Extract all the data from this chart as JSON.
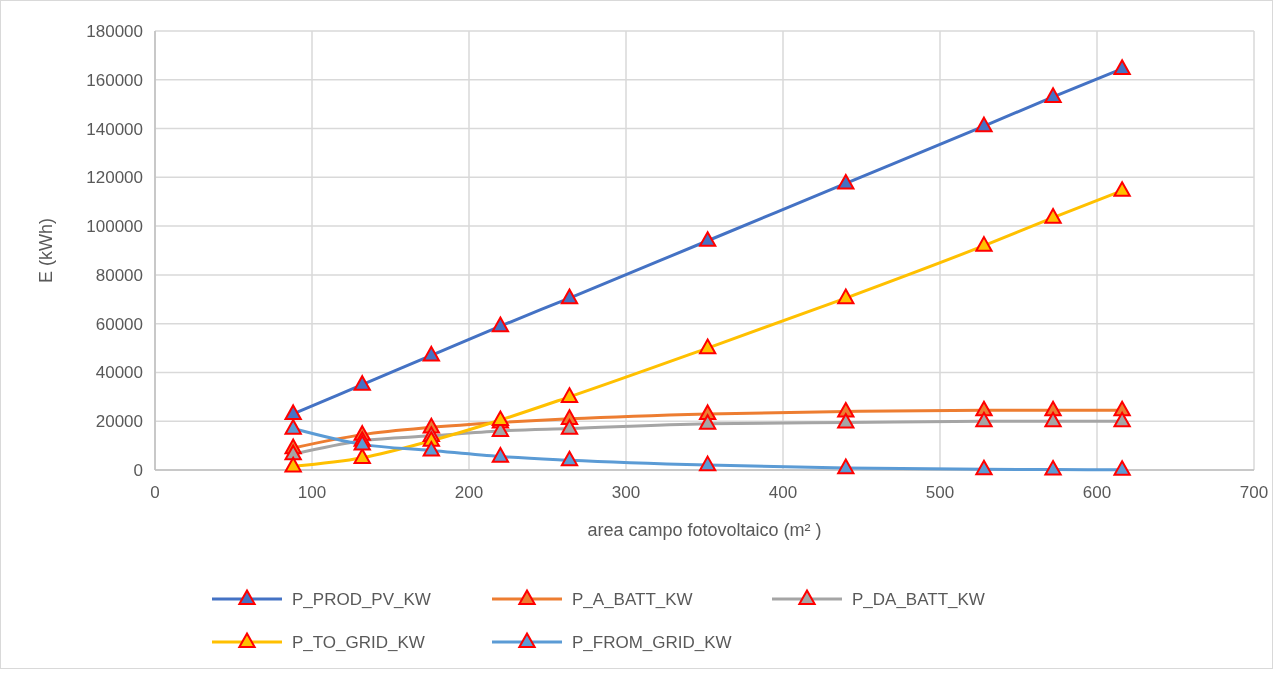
{
  "chart_data": {
    "type": "line",
    "xlabel": "area campo fotovoltaico (m² )",
    "ylabel": "E (kWh)",
    "x": [
      88,
      132,
      176,
      220,
      264,
      352,
      440,
      528,
      572,
      616
    ],
    "xlim": [
      0,
      700
    ],
    "xticks": [
      0,
      100,
      200,
      300,
      400,
      500,
      600,
      700
    ],
    "ylim": [
      0,
      180000
    ],
    "yticks": [
      0,
      20000,
      40000,
      60000,
      80000,
      100000,
      120000,
      140000,
      160000,
      180000
    ],
    "grid": true,
    "legend": "bottom",
    "marker": "triangle",
    "line_style": "solid",
    "series": [
      {
        "name": "P_PROD_PV_KW",
        "color": "#4472c4",
        "values": [
          23000,
          35000,
          47000,
          59000,
          70500,
          94000,
          117500,
          141000,
          153000,
          164500
        ]
      },
      {
        "name": "P_A_BATT_KW",
        "color": "#ed7d31",
        "values": [
          9000,
          14500,
          17500,
          19500,
          21000,
          23000,
          24000,
          24500,
          24500,
          24500
        ]
      },
      {
        "name": "P_DA_BATT_KW",
        "color": "#a5a5a5",
        "values": [
          6500,
          12000,
          14000,
          16000,
          17000,
          19000,
          19500,
          20000,
          20000,
          20000
        ]
      },
      {
        "name": "P_TO_GRID_KW",
        "color": "#ffc000",
        "values": [
          1500,
          5000,
          12000,
          20500,
          30000,
          50000,
          70500,
          92000,
          103500,
          114500
        ]
      },
      {
        "name": "P_FROM_GRID_KW",
        "color": "#5b9bd5",
        "values": [
          17000,
          10500,
          8000,
          5500,
          4000,
          2000,
          800,
          300,
          200,
          100
        ]
      }
    ]
  }
}
